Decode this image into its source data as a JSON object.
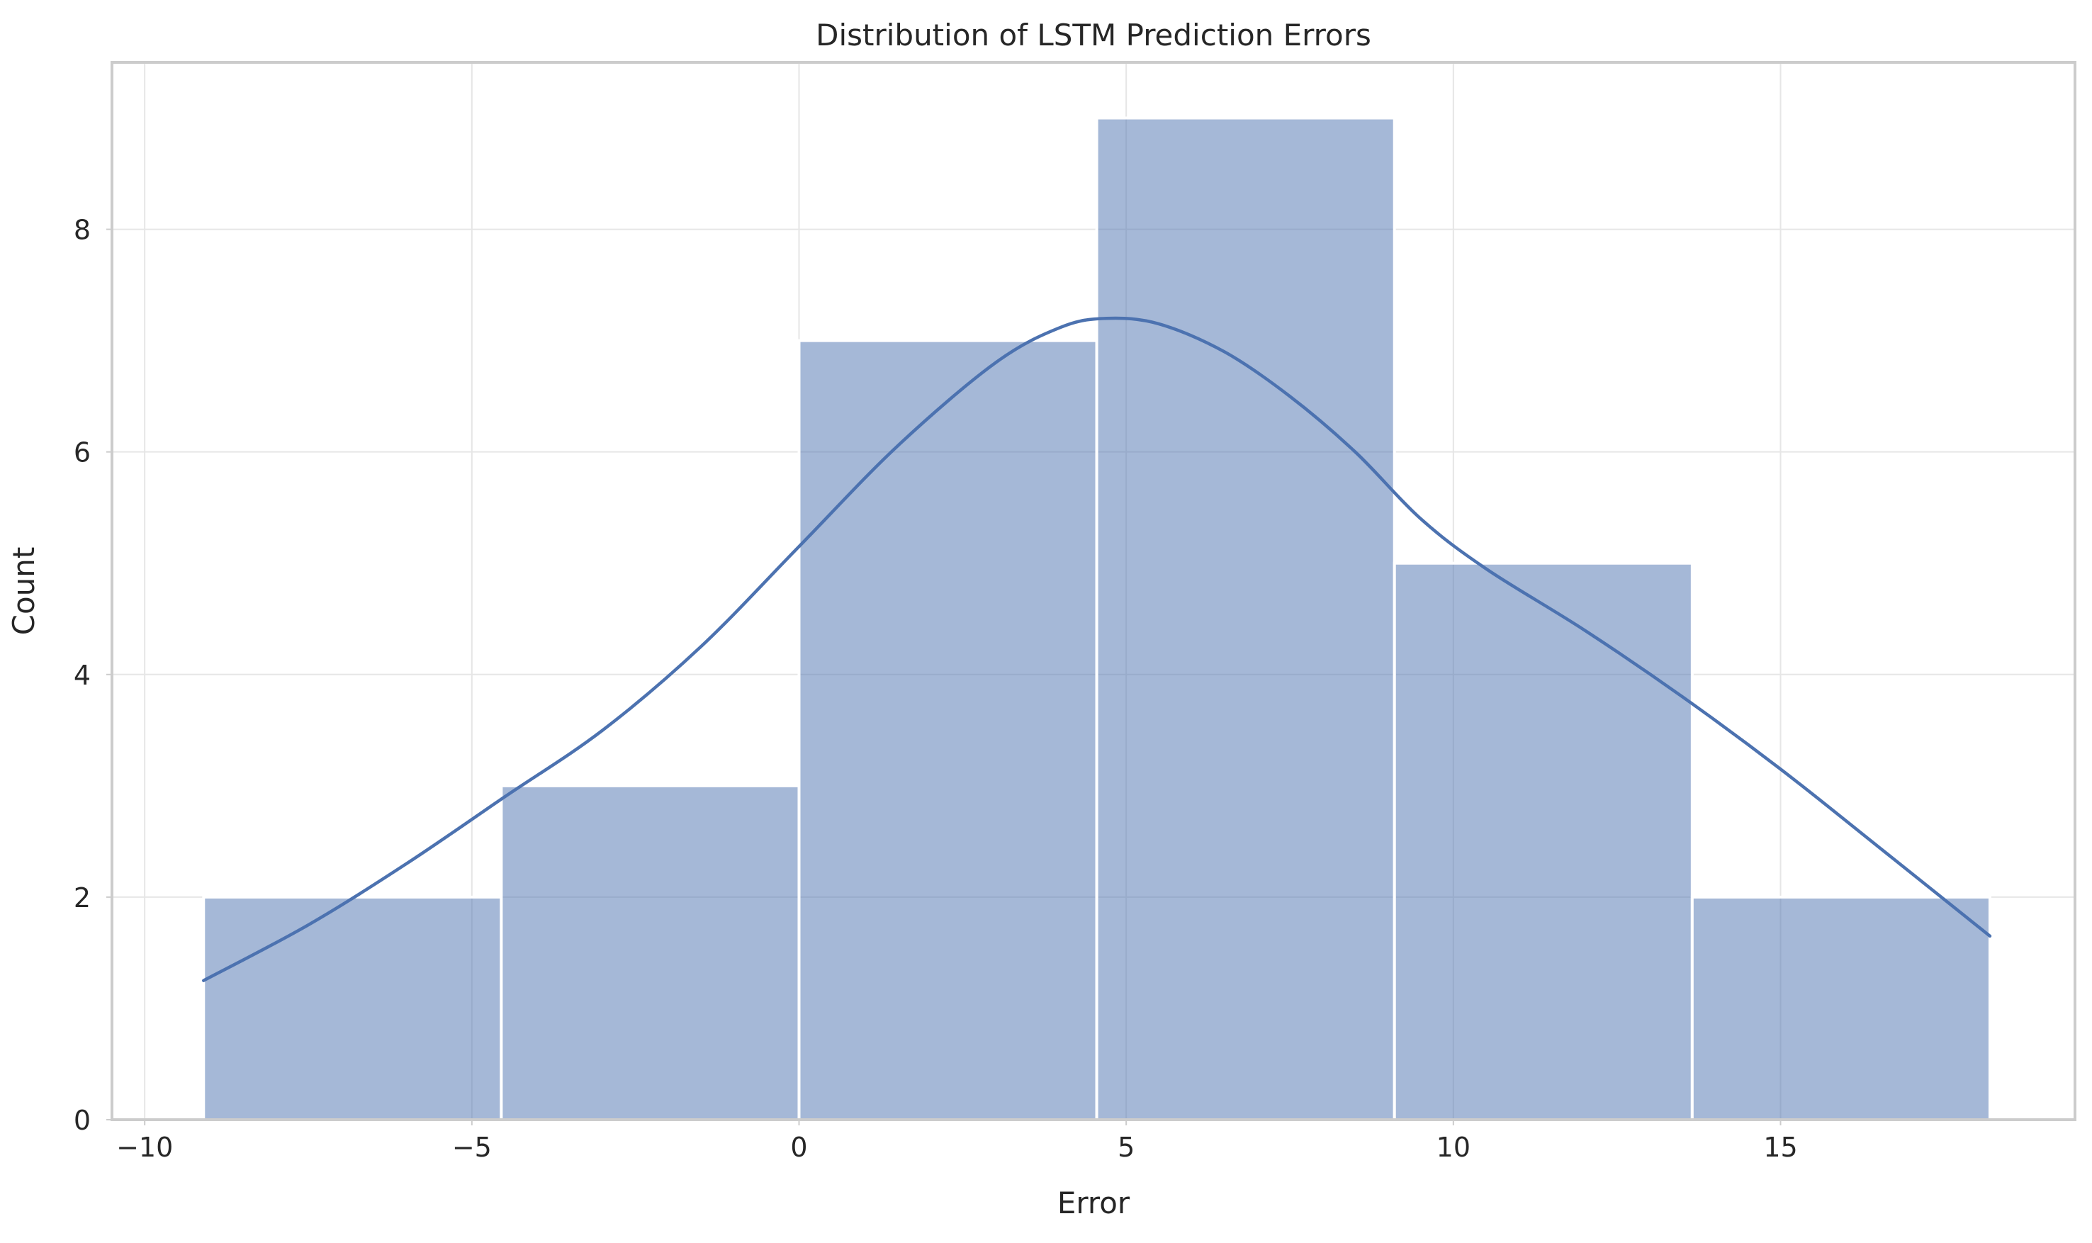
{
  "chart_data": {
    "type": "bar",
    "title": "Distribution of LSTM Prediction Errors",
    "xlabel": "Error",
    "ylabel": "Count",
    "xlim": [
      -10.5,
      19.5
    ],
    "ylim": [
      0,
      9.5
    ],
    "xticks": [
      -10,
      -5,
      0,
      5,
      10,
      15
    ],
    "xtick_labels": [
      "−10",
      "−5",
      "0",
      "5",
      "10",
      "15"
    ],
    "yticks": [
      0,
      2,
      4,
      6,
      8
    ],
    "ytick_labels": [
      "0",
      "2",
      "4",
      "6",
      "8"
    ],
    "grid": true,
    "bins": [
      {
        "x0": -9.1,
        "x1": -4.55,
        "count": 2
      },
      {
        "x0": -4.55,
        "x1": 0.0,
        "count": 3
      },
      {
        "x0": 0.0,
        "x1": 4.55,
        "count": 7
      },
      {
        "x0": 4.55,
        "x1": 9.1,
        "count": 9
      },
      {
        "x0": 9.1,
        "x1": 13.65,
        "count": 5
      },
      {
        "x0": 13.65,
        "x1": 18.2,
        "count": 2
      }
    ],
    "kde": {
      "x": [
        -9.1,
        -7.5,
        -6,
        -4.5,
        -3,
        -1.5,
        0,
        1.5,
        3,
        4,
        4.7,
        5.5,
        6.5,
        7.5,
        8.5,
        9.5,
        10.5,
        12,
        13.5,
        15,
        16.5,
        18.2
      ],
      "y": [
        1.25,
        1.75,
        2.3,
        2.9,
        3.5,
        4.25,
        5.15,
        6.05,
        6.8,
        7.12,
        7.2,
        7.15,
        6.9,
        6.5,
        6.0,
        5.4,
        4.95,
        4.4,
        3.8,
        3.15,
        2.45,
        1.65
      ]
    },
    "colors": {
      "bar_fill": "#4c72b0",
      "bar_opacity": 0.5,
      "kde_line": "#4c72b0"
    }
  }
}
